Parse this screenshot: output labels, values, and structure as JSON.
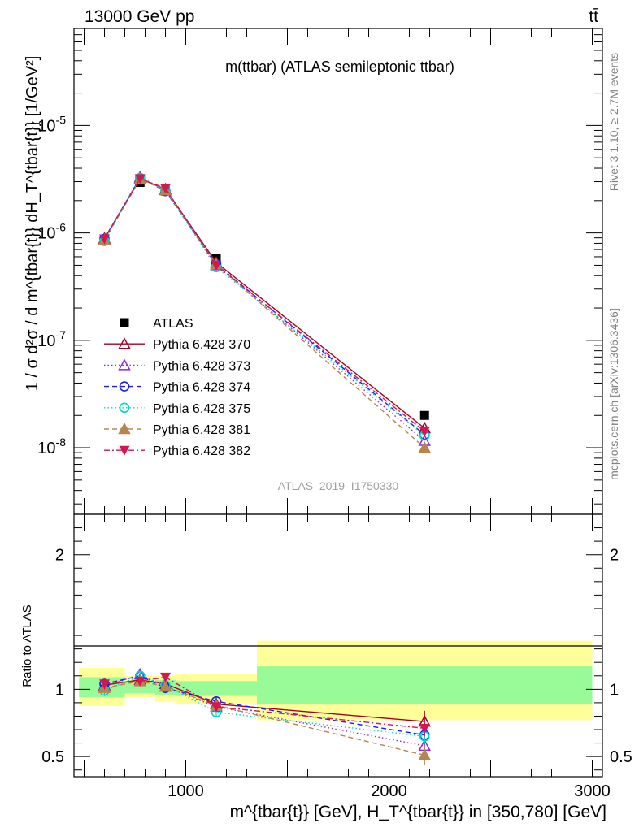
{
  "header": {
    "energy_label": "13000 GeV pp",
    "process_label": "tt̄"
  },
  "side_labels": {
    "rivet": "Rivet 3.1.10, ≥ 2.7M events",
    "mcplots": "mcplots.cern.ch [arXiv:1306.3436]"
  },
  "colors": {
    "ATLAS": "#000000",
    "Pythia 6.428 370": "#a50021",
    "Pythia 6.428 373": "#8a2be2",
    "Pythia 6.428 374": "#1a1aff",
    "Pythia 6.428 375": "#00d9c9",
    "Pythia 6.428 381": "#b5854d",
    "Pythia 6.428 382": "#d4174f",
    "band_inner": "#98fb98",
    "band_outer": "#ffff99"
  },
  "chart_data": [
    {
      "type": "scatter",
      "panel": "main",
      "title": "m(ttbar) (ATLAS semileptonic ttbar)",
      "watermark": "ATLAS_2019_I1750330",
      "ylabel": "1 / σ d²σ / d m^{tbar{t}} dH_T^{tbar{t}} [1/GeV²]",
      "y_scale": "log",
      "xlim": [
        450,
        3050
      ],
      "ylim": [
        2.4e-09,
        8e-05
      ],
      "y_tick_labels": [
        "10^{-8}",
        "10^{-7}",
        "10^{-6}",
        "10^{-5}"
      ],
      "grid": false,
      "legend_position": "lower-left",
      "x": [
        600,
        775,
        900,
        1150,
        2175
      ],
      "series": [
        {
          "name": "ATLAS",
          "marker": "square-filled",
          "line": "none",
          "values": [
            8.6e-07,
            2.95e-06,
            2.45e-06,
            5.8e-07,
            2e-08
          ]
        },
        {
          "name": "Pythia 6.428 370",
          "marker": "triangle-up-open",
          "line": "solid",
          "values": [
            8.9e-07,
            3.2e-06,
            2.55e-06,
            5.3e-07,
            1.52e-08
          ]
        },
        {
          "name": "Pythia 6.428 373",
          "marker": "triangle-up-open",
          "line": "dotted",
          "values": [
            8.7e-07,
            3.3e-06,
            2.5e-06,
            5e-07,
            1.16e-08
          ]
        },
        {
          "name": "Pythia 6.428 374",
          "marker": "circle-open",
          "line": "dashed",
          "values": [
            8.8e-07,
            3.25e-06,
            2.45e-06,
            5.1e-07,
            1.32e-08
          ]
        },
        {
          "name": "Pythia 6.428 375",
          "marker": "circle-open",
          "line": "dotted",
          "values": [
            8.4e-07,
            3.25e-06,
            2.5e-06,
            4.8e-07,
            1.3e-08
          ]
        },
        {
          "name": "Pythia 6.428 381",
          "marker": "triangle-up-filled",
          "line": "dashed",
          "values": [
            8.6e-07,
            3.15e-06,
            2.5e-06,
            5.1e-07,
            1e-08
          ]
        },
        {
          "name": "Pythia 6.428 382",
          "marker": "triangle-down-filled",
          "line": "dashdot",
          "values": [
            8.8e-07,
            3.2e-06,
            2.6e-06,
            5e-07,
            1.42e-08
          ]
        }
      ]
    },
    {
      "type": "scatter",
      "panel": "ratio",
      "ylabel": "Ratio to ATLAS",
      "xlabel": "m^{tbar{t}} [GeV], H_T^{tbar{t}} in [350,780] [GeV]",
      "xlim": [
        450,
        3050
      ],
      "ylim": [
        0.35,
        2.3
      ],
      "x_tick_labels": [
        "1000",
        "2000",
        "3000"
      ],
      "y_tick_labels": [
        "0.5",
        "1",
        "2"
      ],
      "x": [
        600,
        775,
        900,
        1150,
        2175
      ],
      "bands": [
        {
          "x_range": [
            475,
            700
          ],
          "inner": [
            0.94,
            1.09
          ],
          "outer": [
            0.875,
            1.16
          ]
        },
        {
          "x_range": [
            700,
            850
          ],
          "inner": [
            0.97,
            1.06
          ],
          "outer": [
            0.94,
            1.1
          ]
        },
        {
          "x_range": [
            850,
            950
          ],
          "inner": [
            0.96,
            1.07
          ],
          "outer": [
            0.91,
            1.1
          ]
        },
        {
          "x_range": [
            950,
            1350
          ],
          "inner": [
            0.95,
            1.06
          ],
          "outer": [
            0.89,
            1.11
          ]
        },
        {
          "x_range": [
            1350,
            3000
          ],
          "inner": [
            0.89,
            1.17
          ],
          "outer": [
            0.77,
            1.36
          ]
        }
      ],
      "series": [
        {
          "name": "Pythia 6.428 370",
          "values": [
            1.03,
            1.07,
            1.04,
            0.89,
            0.76
          ],
          "errors": [
            0.04,
            0.03,
            0.03,
            0.03,
            0.08
          ]
        },
        {
          "name": "Pythia 6.428 373",
          "values": [
            1.02,
            1.11,
            1.02,
            0.87,
            0.58
          ],
          "errors": [
            0.04,
            0.03,
            0.03,
            0.03,
            0.05
          ]
        },
        {
          "name": "Pythia 6.428 374",
          "values": [
            1.04,
            1.1,
            1.01,
            0.91,
            0.66
          ],
          "errors": [
            0.04,
            0.03,
            0.03,
            0.03,
            0.05
          ]
        },
        {
          "name": "Pythia 6.428 375",
          "values": [
            0.99,
            1.1,
            1.03,
            0.83,
            0.65
          ],
          "errors": [
            0.04,
            0.03,
            0.03,
            0.03,
            0.05
          ]
        },
        {
          "name": "Pythia 6.428 381",
          "values": [
            1.01,
            1.06,
            1.02,
            0.88,
            0.51
          ],
          "errors": [
            0.04,
            0.03,
            0.03,
            0.03,
            0.07
          ]
        },
        {
          "name": "Pythia 6.428 382",
          "values": [
            1.04,
            1.06,
            1.09,
            0.87,
            0.71
          ],
          "errors": [
            0.04,
            0.03,
            0.03,
            0.03,
            0.06
          ]
        }
      ]
    }
  ]
}
